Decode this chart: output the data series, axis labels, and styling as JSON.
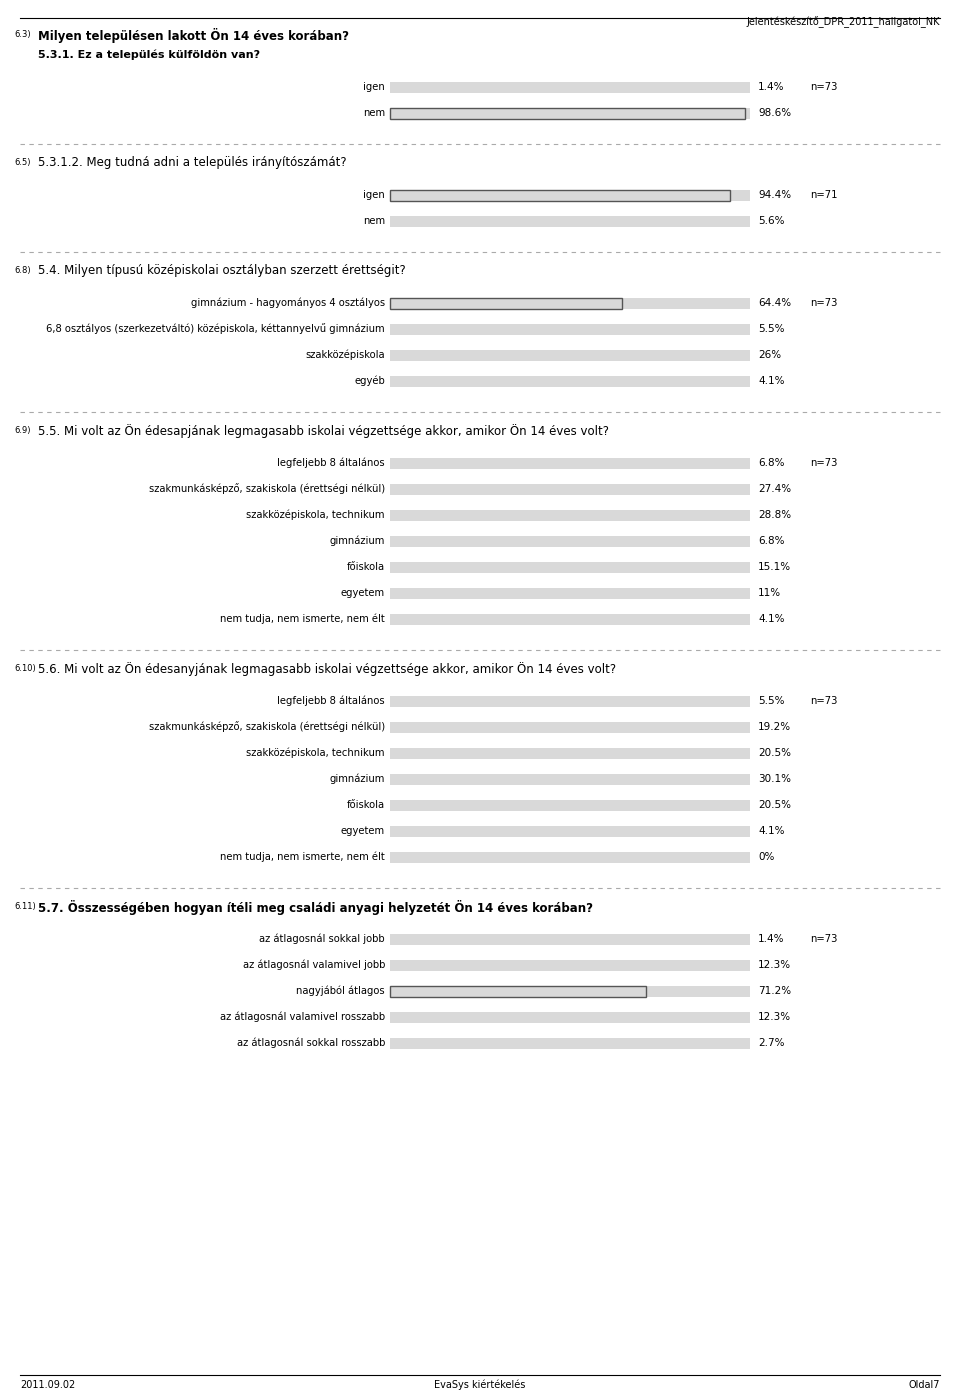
{
  "header_text": "Jelentéskészítő_DPR_2011_hallgatoi_NK",
  "footer_left": "2011.09.02",
  "footer_center": "EvaSys kiértékelés",
  "footer_right": "Oldal7",
  "bg_color": "#ffffff",
  "sections": [
    {
      "section_num": "6.3)",
      "title": "Milyen településen lakott Ön 14 éves korában?",
      "title_bold": true,
      "subtitle": "5.3.1. Ez a település külföldön van?",
      "subtitle_bold": false,
      "n_label": "n=73",
      "items": [
        {
          "label": "igen",
          "value": 1.4,
          "highlight": false
        },
        {
          "label": "nem",
          "value": 98.6,
          "highlight": true
        }
      ]
    },
    {
      "section_num": "6.5)",
      "title": "5.3.1.2. Meg tudná adni a település irányítószámát?",
      "title_bold": false,
      "subtitle": null,
      "n_label": "n=71",
      "items": [
        {
          "label": "igen",
          "value": 94.4,
          "highlight": true
        },
        {
          "label": "nem",
          "value": 5.6,
          "highlight": false
        }
      ]
    },
    {
      "section_num": "6.8)",
      "title": "5.4. Milyen típusú középiskolai osztályban szerzett érettségit?",
      "title_bold": false,
      "subtitle": null,
      "n_label": "n=73",
      "items": [
        {
          "label": "gimnázium - hagyományos 4 osztályos",
          "value": 64.4,
          "highlight": true
        },
        {
          "label": "6,8 osztályos (szerkezetváltó) középiskola, kéttannyelvű gimnázium",
          "value": 5.5,
          "highlight": false
        },
        {
          "label": "szakközépiskola",
          "value": 26.0,
          "highlight": false
        },
        {
          "label": "egyéb",
          "value": 4.1,
          "highlight": false
        }
      ]
    },
    {
      "section_num": "6.9)",
      "title": "5.5. Mi volt az Ön édesapjának legmagasabb iskolai végzettsége akkor, amikor Ön 14 éves volt?",
      "title_bold": false,
      "subtitle": null,
      "n_label": "n=73",
      "items": [
        {
          "label": "legfeljebb 8 általános",
          "value": 6.8,
          "highlight": false
        },
        {
          "label": "szakmunkásképző, szakiskola (érettségi nélkül)",
          "value": 27.4,
          "highlight": false
        },
        {
          "label": "szakközépiskola, technikum",
          "value": 28.8,
          "highlight": false
        },
        {
          "label": "gimnázium",
          "value": 6.8,
          "highlight": false
        },
        {
          "label": "főiskola",
          "value": 15.1,
          "highlight": false
        },
        {
          "label": "egyetem",
          "value": 11.0,
          "highlight": false
        },
        {
          "label": "nem tudja, nem ismerte, nem élt",
          "value": 4.1,
          "highlight": false
        }
      ]
    },
    {
      "section_num": "6.10)",
      "title": "5.6. Mi volt az Ön édesanyjának legmagasabb iskolai végzettsége akkor, amikor Ön 14 éves volt?",
      "title_bold": false,
      "subtitle": null,
      "n_label": "n=73",
      "items": [
        {
          "label": "legfeljebb 8 általános",
          "value": 5.5,
          "highlight": false
        },
        {
          "label": "szakmunkásképző, szakiskola (érettségi nélkül)",
          "value": 19.2,
          "highlight": false
        },
        {
          "label": "szakközépiskola, technikum",
          "value": 20.5,
          "highlight": false
        },
        {
          "label": "gimnázium",
          "value": 30.1,
          "highlight": false
        },
        {
          "label": "főiskola",
          "value": 20.5,
          "highlight": false
        },
        {
          "label": "egyetem",
          "value": 4.1,
          "highlight": false
        },
        {
          "label": "nem tudja, nem ismerte, nem élt",
          "value": 0.0,
          "highlight": false
        }
      ]
    },
    {
      "section_num": "6.11)",
      "title": "5.7. Összességében hogyan ítéli meg családi anyagi helyzetét Ön 14 éves korában?",
      "title_bold": true,
      "subtitle": null,
      "n_label": "n=73",
      "items": [
        {
          "label": "az átlagosnál sokkal jobb",
          "value": 1.4,
          "highlight": false
        },
        {
          "label": "az átlagosnál valamivel jobb",
          "value": 12.3,
          "highlight": false
        },
        {
          "label": "nagyjából átlagos",
          "value": 71.2,
          "highlight": true
        },
        {
          "label": "az átlagosnál valamivel rosszabb",
          "value": 12.3,
          "highlight": false
        },
        {
          "label": "az átlagosnál sokkal rosszabb",
          "value": 2.7,
          "highlight": false
        }
      ]
    }
  ]
}
